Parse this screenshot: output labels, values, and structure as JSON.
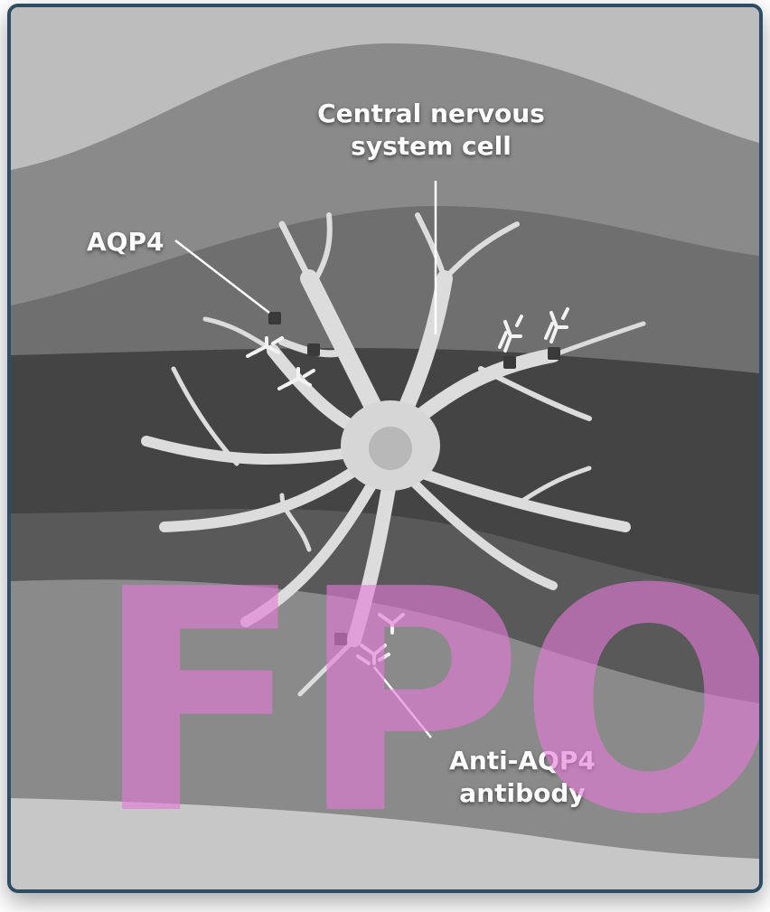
{
  "labels": {
    "cns_cell": "Central nervous system cell",
    "aqp4": "AQP4",
    "anti_aqp4": "Anti-AQP4 antibody"
  },
  "watermark": "FPO",
  "colors": {
    "frame_border": "#2d4d65",
    "watermark": "#e37ad6",
    "label_text": "#ffffff",
    "cell": "#dcdcdc"
  }
}
